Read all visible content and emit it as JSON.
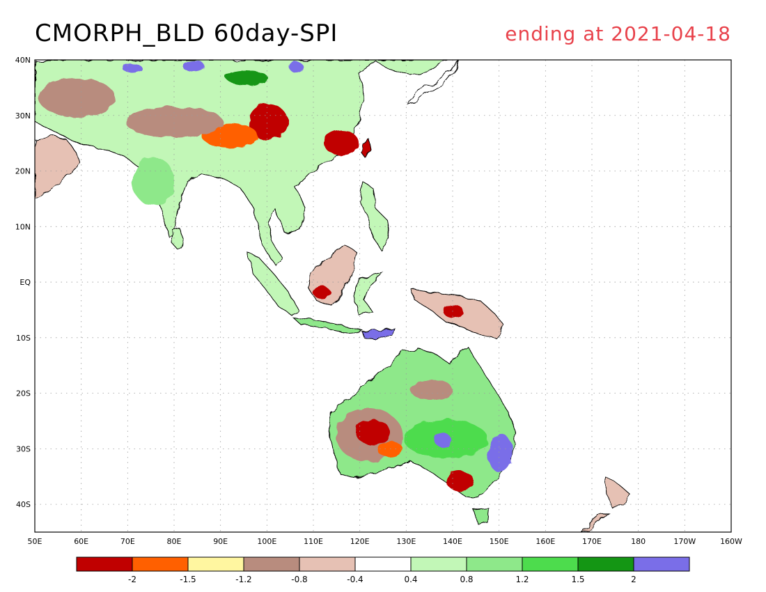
{
  "title": "CMORPH_BLD 60day-SPI",
  "subtitle": "ending at 2021-04-18",
  "colors": {
    "title": "#000000",
    "subtitle": "#e8414a",
    "coast": "#000000",
    "grid": "#9a9a9a"
  },
  "map": {
    "lon_range": [
      50,
      200
    ],
    "lat_range": [
      -45,
      40
    ],
    "grid": true
  },
  "axes": {
    "x_ticks": [
      "50E",
      "60E",
      "70E",
      "80E",
      "90E",
      "100E",
      "110E",
      "120E",
      "130E",
      "140E",
      "150E",
      "160E",
      "170E",
      "180",
      "170W",
      "160W"
    ],
    "y_ticks": [
      "40N",
      "30N",
      "20N",
      "10N",
      "EQ",
      "10S",
      "20S",
      "30S",
      "40S"
    ]
  },
  "colorbar": {
    "colors": [
      "#c00000",
      "#ff6000",
      "#fff6a0",
      "#b88c7e",
      "#e6c1b4",
      "#ffffff",
      "#c2f7b7",
      "#8ee88a",
      "#4ddc4d",
      "#149614",
      "#7a6ee8"
    ],
    "labels": [
      "-2",
      "-1.5",
      "-1.2",
      "-0.8",
      "-0.4",
      "0.4",
      "0.8",
      "1.2",
      "1.5",
      "2"
    ]
  }
}
